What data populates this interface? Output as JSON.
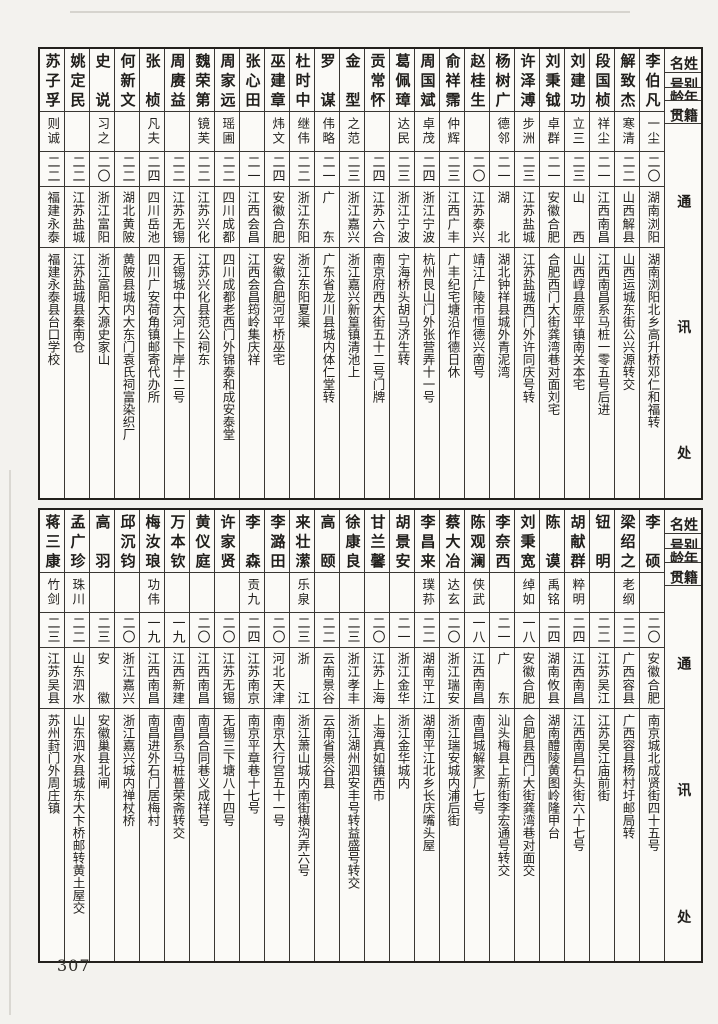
{
  "page": {
    "number": "307"
  },
  "column_headers": {
    "name": "姓名",
    "alias": "别号",
    "age": "年龄",
    "native_place": "籍贯",
    "address": "通讯处"
  },
  "tables": [
    {
      "entries": [
        {
          "name": "李伯凡",
          "alias": "一尘",
          "age": "二〇",
          "native_place": "湖南浏阳",
          "address": "湖南浏阳北乡高升桥邓仁和福转"
        },
        {
          "name": "解致杰",
          "alias": "寒清",
          "age": "二二",
          "native_place": "山西解县",
          "address": "山西运城东街公兴源转交"
        },
        {
          "name": "段国桢",
          "alias": "祥尘",
          "age": "二一",
          "native_place": "江西南昌",
          "address": "江西南昌系马桩一零五号后进"
        },
        {
          "name": "刘建功",
          "alias": "立三",
          "age": "二三",
          "native_place": "山西",
          "address": "山西崞县原平镇南关本宅"
        },
        {
          "name": "刘秉钺",
          "alias": "卓群",
          "age": "二一",
          "native_place": "安徽合肥",
          "address": "合肥西门大街龚湾巷对面刘宅"
        },
        {
          "name": "许泽溥",
          "alias": "步洲",
          "age": "二三",
          "native_place": "江苏盐城",
          "address": "江苏盐城西门外许同庆号转"
        },
        {
          "name": "杨树广",
          "alias": "德邻",
          "age": "二一",
          "native_place": "湖北",
          "address": "湖北钟祥县城外青泥湾"
        },
        {
          "name": "赵桂生",
          "alias": "",
          "age": "二〇",
          "native_place": "江苏泰兴",
          "address": "靖江广陵市恒德兴南号"
        },
        {
          "name": "俞祥霈",
          "alias": "仲辉",
          "age": "二三",
          "native_place": "江西广丰",
          "address": "广丰纪宅塘沿作德日休"
        },
        {
          "name": "周国斌",
          "alias": "卓茂",
          "age": "二四",
          "native_place": "浙江宁波",
          "address": "杭州艮山门外张营弄十一号"
        },
        {
          "name": "葛佩璋",
          "alias": "达民",
          "age": "二三",
          "native_place": "浙江宁波",
          "address": "宁海桥头胡马济生转"
        },
        {
          "name": "贡常怀",
          "alias": "",
          "age": "二四",
          "native_place": "江苏六合",
          "address": "南京府西大街五十二号门牌"
        },
        {
          "name": "金型",
          "alias": "之范",
          "age": "二三",
          "native_place": "浙江嘉兴",
          "address": "浙江嘉兴新篁镇清池上"
        },
        {
          "name": "罗谋",
          "alias": "伟略",
          "age": "二一",
          "native_place": "广东",
          "address": "广东省龙川县城内体仁堂转"
        },
        {
          "name": "杜时中",
          "alias": "继伟",
          "age": "二二",
          "native_place": "浙江东阳",
          "address": "浙江东阳夏渠"
        },
        {
          "name": "巫建章",
          "alias": "炜文",
          "age": "二四",
          "native_place": "安徽合肥",
          "address": "安徽合肥河平桥巫宅"
        },
        {
          "name": "张心田",
          "alias": "",
          "age": "二一",
          "native_place": "江西会昌",
          "address": "江西会昌筠岭集庆祥"
        },
        {
          "name": "周家远",
          "alias": "瑶圃",
          "age": "二二",
          "native_place": "四川成都",
          "address": "四川成都老西门外锦泰和成安泰堂"
        },
        {
          "name": "魏荣第",
          "alias": "镜芙",
          "age": "二二",
          "native_place": "江苏兴化",
          "address": "江苏兴化县范公祠东"
        },
        {
          "name": "周赓益",
          "alias": "",
          "age": "二二",
          "native_place": "江苏无锡",
          "address": "无锡城中大河上下岸十二号"
        },
        {
          "name": "张桢",
          "alias": "凡夫",
          "age": "二四",
          "native_place": "四川岳池",
          "address": "四川广安荷角镇邮寄代办所"
        },
        {
          "name": "何新文",
          "alias": "",
          "age": "二二",
          "native_place": "湖北黄陂",
          "address": "黄陂县城内大东门袁氏祠富染织厂"
        },
        {
          "name": "史说",
          "alias": "习之",
          "age": "二〇",
          "native_place": "浙江富阳",
          "address": "浙江富阳大源史家山"
        },
        {
          "name": "姚定民",
          "alias": "",
          "age": "二二",
          "native_place": "江苏盐城",
          "address": "江苏盐城县秦南仓"
        },
        {
          "name": "苏子孚",
          "alias": "则诚",
          "age": "二二",
          "native_place": "福建永泰",
          "address": "福建永泰县台口学校"
        }
      ]
    },
    {
      "entries": [
        {
          "name": "李硕",
          "alias": "",
          "age": "二〇",
          "native_place": "安徽合肥",
          "address": "南京城北成贤街四十五号"
        },
        {
          "name": "梁绍之",
          "alias": "老纲",
          "age": "二二",
          "native_place": "广西容县",
          "address": "广西容县杨村圩邮局转"
        },
        {
          "name": "钮明",
          "alias": "",
          "age": "二二",
          "native_place": "江苏吴江",
          "address": "江苏吴江庙前街"
        },
        {
          "name": "胡献群",
          "alias": "粹明",
          "age": "二四",
          "native_place": "江西南昌",
          "address": "江西南昌石头街六十七号"
        },
        {
          "name": "陈谟",
          "alias": "禹铭",
          "age": "二四",
          "native_place": "湖南攸县",
          "address": "湖南醴陵黄图岭隆甲台"
        },
        {
          "name": "刘秉宽",
          "alias": "绰如",
          "age": "一八",
          "native_place": "安徽合肥",
          "address": "合肥县西门大街龚湾巷对面交"
        },
        {
          "name": "李奈西",
          "alias": "",
          "age": "二一",
          "native_place": "广东",
          "address": "汕头梅县上新街李宏通号转交"
        },
        {
          "name": "陈观澜",
          "alias": "侠武",
          "age": "一八",
          "native_place": "江西南昌",
          "address": "南昌城解家厂七号"
        },
        {
          "name": "蔡大冶",
          "alias": "达玄",
          "age": "二〇",
          "native_place": "浙江瑞安",
          "address": "浙江瑞安城内浦后街"
        },
        {
          "name": "李昌来",
          "alias": "璞荪",
          "age": "二二",
          "native_place": "湖南平江",
          "address": "湖南平江北乡长庆嘴头屋"
        },
        {
          "name": "胡景安",
          "alias": "",
          "age": "二一",
          "native_place": "浙江金华",
          "address": "浙江金华城内"
        },
        {
          "name": "甘兰馨",
          "alias": "",
          "age": "二〇",
          "native_place": "江苏上海",
          "address": "上海真如镇西市"
        },
        {
          "name": "徐康良",
          "alias": "",
          "age": "二三",
          "native_place": "浙江孝丰",
          "address": "浙江湖州泗安丰号转益盛号转交"
        },
        {
          "name": "高颐",
          "alias": "",
          "age": "二二",
          "native_place": "云南景谷",
          "address": "云南省景谷县"
        },
        {
          "name": "来壮潆",
          "alias": "乐泉",
          "age": "二三",
          "native_place": "浙江",
          "address": "浙江萧山城内南街横沟弄六号"
        },
        {
          "name": "李潞田",
          "alias": "",
          "age": "二〇",
          "native_place": "河北天津",
          "address": "南京大行宫五十一号"
        },
        {
          "name": "李森",
          "alias": "贡九",
          "age": "二四",
          "native_place": "江苏南京",
          "address": "南京平章巷十七号"
        },
        {
          "name": "许家贤",
          "alias": "",
          "age": "二〇",
          "native_place": "江苏无锡",
          "address": "无锡三下塘八十四号"
        },
        {
          "name": "黄仪庭",
          "alias": "",
          "age": "二〇",
          "native_place": "江西南昌",
          "address": "南昌合同巷义成祥号"
        },
        {
          "name": "万本钦",
          "alias": "",
          "age": "一九",
          "native_place": "江西新建",
          "address": "南昌系马桩普荣斋转交"
        },
        {
          "name": "梅汝琅",
          "alias": "功伟",
          "age": "一九",
          "native_place": "江西南昌",
          "address": "南昌进外石门居梅村"
        },
        {
          "name": "邱沉钧",
          "alias": "",
          "age": "二〇",
          "native_place": "浙江嘉兴",
          "address": "浙江嘉兴城内禅杖桥"
        },
        {
          "name": "高羽",
          "alias": "",
          "age": "二三",
          "native_place": "安徽",
          "address": "安徽巢县北闸"
        },
        {
          "name": "孟广珍",
          "alias": "珠川",
          "age": "二二",
          "native_place": "山东泗水",
          "address": "山东泗水县城东大卞桥邮转黄土屋交"
        },
        {
          "name": "蒋三康",
          "alias": "竹剑",
          "age": "二三",
          "native_place": "江苏吴县",
          "address": "苏州葑门外周庄镇"
        }
      ]
    }
  ]
}
